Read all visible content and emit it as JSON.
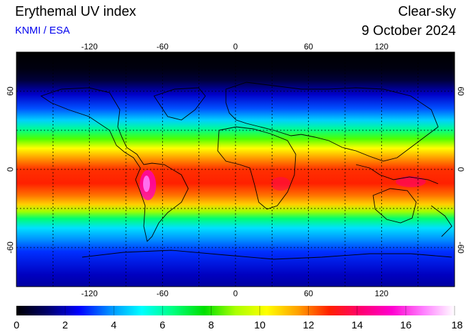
{
  "header": {
    "title": "Erythemal UV index",
    "credit": "KNMI / ESA",
    "condition": "Clear-sky",
    "date": "9 October 2024"
  },
  "map": {
    "lon_ticks": [
      "-120",
      "-60",
      "0",
      "60",
      "120"
    ],
    "lat_ticks": [
      "60",
      "0",
      "-60"
    ],
    "grid_lons": [
      -150,
      -120,
      -90,
      -60,
      -30,
      0,
      30,
      60,
      90,
      120,
      150
    ],
    "grid_lats": [
      60,
      30,
      0,
      -30,
      -60
    ],
    "lon_range": [
      -180,
      180
    ],
    "lat_range": [
      -90,
      90
    ]
  },
  "colorbar": {
    "ticks": [
      "0",
      "2",
      "4",
      "6",
      "8",
      "10",
      "12",
      "14",
      "16",
      "18"
    ],
    "range": [
      0,
      18
    ],
    "colors": [
      "#000000",
      "#00006a",
      "#0000ff",
      "#0090ff",
      "#00ffff",
      "#00ff80",
      "#00e000",
      "#aaff00",
      "#ffff00",
      "#ffa000",
      "#ff2000",
      "#ff0070",
      "#ff00d0",
      "#ff80ff",
      "#ffffff"
    ]
  }
}
